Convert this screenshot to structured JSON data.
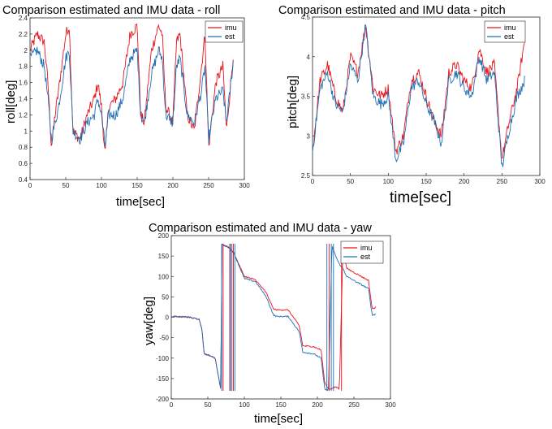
{
  "colors": {
    "imu": "#e8131b",
    "est": "#1f6fb6",
    "axis": "#262626"
  },
  "charts": [
    {
      "id": "roll",
      "title": "Comparison estimated and IMU data - roll",
      "xlabel": "time[sec]",
      "ylabel": "roll[deg]",
      "xticks": [
        "0",
        "50",
        "100",
        "150",
        "200",
        "250",
        "300"
      ],
      "yticks": [
        "0.4",
        "0.6",
        "0.8",
        "1",
        "1.2",
        "1.4",
        "1.6",
        "1.8",
        "2",
        "2.2",
        "2.4"
      ],
      "legend": [
        "imu",
        "est"
      ]
    },
    {
      "id": "pitch",
      "title": "Comparison estimated and IMU data - pitch",
      "xlabel": "time[sec]",
      "ylabel": "pitch[deg]",
      "xticks": [
        "0",
        "50",
        "100",
        "150",
        "200",
        "250",
        "300"
      ],
      "yticks": [
        "2.5",
        "3",
        "3.5",
        "4",
        "4.5"
      ],
      "legend": [
        "imu",
        "est"
      ]
    },
    {
      "id": "yaw",
      "title": "Comparison estimated and IMU data - yaw",
      "xlabel": "time[sec]",
      "ylabel": "yaw[deg]",
      "xticks": [
        "0",
        "50",
        "100",
        "150",
        "200",
        "250",
        "300"
      ],
      "yticks": [
        "-200",
        "-150",
        "-100",
        "-50",
        "0",
        "50",
        "100",
        "150",
        "200"
      ],
      "legend": [
        "imu",
        "est"
      ]
    }
  ],
  "chart_data": [
    {
      "type": "line",
      "title": "Comparison estimated and IMU data - roll",
      "xlabel": "time[sec]",
      "ylabel": "roll[deg]",
      "xlim": [
        0,
        300
      ],
      "ylim": [
        0.4,
        2.4
      ],
      "legend_position": "top-right",
      "x": [
        0,
        10,
        20,
        25,
        30,
        35,
        40,
        50,
        55,
        60,
        70,
        80,
        90,
        95,
        100,
        105,
        110,
        120,
        130,
        140,
        150,
        155,
        160,
        170,
        180,
        185,
        190,
        200,
        205,
        210,
        220,
        230,
        240,
        245,
        250,
        260,
        270,
        275,
        280,
        285
      ],
      "series": [
        {
          "name": "imu",
          "values": [
            2.0,
            2.2,
            2.1,
            1.6,
            0.8,
            1.2,
            1.5,
            2.2,
            2.3,
            1.0,
            0.9,
            1.2,
            1.4,
            1.6,
            1.3,
            0.7,
            1.3,
            1.4,
            1.6,
            2.2,
            2.3,
            1.2,
            1.1,
            2.0,
            2.3,
            2.2,
            1.3,
            1.1,
            2.1,
            2.2,
            1.2,
            1.0,
            1.8,
            2.2,
            0.8,
            1.6,
            1.8,
            1.0,
            1.5,
            2.0
          ]
        },
        {
          "name": "est",
          "values": [
            1.9,
            2.0,
            1.8,
            1.4,
            0.9,
            1.1,
            1.3,
            1.9,
            2.0,
            1.0,
            0.9,
            1.1,
            1.2,
            1.4,
            1.2,
            0.8,
            1.2,
            1.2,
            1.4,
            1.9,
            2.0,
            1.2,
            1.1,
            1.7,
            2.0,
            1.9,
            1.2,
            1.1,
            1.8,
            1.9,
            1.2,
            1.1,
            1.5,
            1.8,
            0.9,
            1.4,
            1.5,
            1.1,
            1.5,
            1.9
          ]
        }
      ]
    },
    {
      "type": "line",
      "title": "Comparison estimated and IMU data - pitch",
      "xlabel": "time[sec]",
      "ylabel": "pitch[deg]",
      "xlim": [
        0,
        300
      ],
      "ylim": [
        2.5,
        4.5
      ],
      "legend_position": "top-right",
      "x": [
        0,
        10,
        20,
        30,
        40,
        50,
        60,
        70,
        80,
        90,
        100,
        110,
        120,
        130,
        140,
        150,
        160,
        170,
        180,
        190,
        200,
        210,
        220,
        230,
        240,
        250,
        260,
        270,
        280
      ],
      "series": [
        {
          "name": "imu",
          "values": [
            2.8,
            3.7,
            3.9,
            3.5,
            3.3,
            4.0,
            3.8,
            4.4,
            3.6,
            3.5,
            3.6,
            2.8,
            3.0,
            3.7,
            3.8,
            3.5,
            3.2,
            3.0,
            3.8,
            3.9,
            3.7,
            3.6,
            4.1,
            3.8,
            3.9,
            2.7,
            3.2,
            3.6,
            4.2
          ]
        },
        {
          "name": "est",
          "values": [
            2.8,
            3.6,
            3.8,
            3.4,
            3.3,
            3.9,
            3.7,
            4.4,
            3.5,
            3.4,
            3.5,
            2.7,
            2.9,
            3.6,
            3.7,
            3.4,
            3.2,
            2.9,
            3.7,
            3.8,
            3.6,
            3.5,
            4.0,
            3.7,
            3.8,
            2.6,
            3.1,
            3.5,
            3.7
          ]
        }
      ]
    },
    {
      "type": "line",
      "title": "Comparison estimated and IMU data - yaw",
      "xlabel": "time[sec]",
      "ylabel": "yaw[deg]",
      "xlim": [
        0,
        300
      ],
      "ylim": [
        -200,
        200
      ],
      "legend_position": "top-right",
      "x": [
        0,
        20,
        25,
        38,
        42,
        45,
        55,
        60,
        68,
        69,
        70,
        80,
        84,
        85,
        100,
        110,
        115,
        130,
        140,
        145,
        160,
        175,
        180,
        195,
        205,
        210,
        215,
        220,
        225,
        230,
        235,
        240,
        250,
        270,
        275,
        280
      ],
      "series": [
        {
          "name": "imu",
          "values": [
            2,
            1,
            0,
            -5,
            -30,
            -90,
            -95,
            -100,
            -178,
            180,
            178,
            170,
            160,
            160,
            100,
            95,
            92,
            60,
            20,
            18,
            18,
            -20,
            -70,
            -72,
            -80,
            -160,
            -175,
            -175,
            -170,
            -175,
            170,
            120,
            110,
            90,
            20,
            25
          ]
        },
        {
          "name": "est",
          "values": [
            2,
            1,
            0,
            -5,
            -30,
            -90,
            -95,
            -100,
            -178,
            180,
            178,
            170,
            160,
            160,
            95,
            90,
            88,
            50,
            5,
            2,
            2,
            -35,
            -85,
            -90,
            -100,
            -175,
            -180,
            175,
            150,
            130,
            120,
            100,
            90,
            70,
            5,
            8
          ]
        }
      ]
    }
  ]
}
